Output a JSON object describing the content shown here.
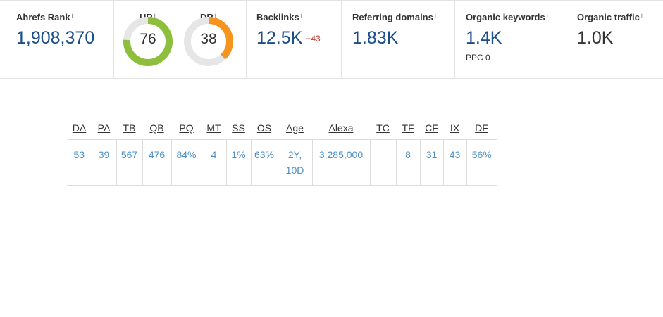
{
  "metrics": {
    "ahrefs_rank": {
      "label": "Ahrefs Rank",
      "value": "1,908,370"
    },
    "ur": {
      "label": "UR",
      "value": "76",
      "fraction": 0.76,
      "color": "#8dbf3c"
    },
    "dr": {
      "label": "DR",
      "value": "38",
      "fraction": 0.38,
      "color": "#f7941d"
    },
    "backlinks": {
      "label": "Backlinks",
      "value": "12.5K",
      "delta": "−43"
    },
    "referring_domains": {
      "label": "Referring domains",
      "value": "1.83K"
    },
    "organic_keywords": {
      "label": "Organic keywords",
      "value": "1.4K",
      "ppc": "PPC 0"
    },
    "organic_traffic": {
      "label": "Organic traffic",
      "value": "1.0K"
    },
    "info_marker": "i",
    "track_color": "#e6e6e6"
  },
  "seo_table": {
    "headers": [
      "DA",
      "PA",
      "TB",
      "QB",
      "PQ",
      "MT",
      "SS",
      "OS",
      "Age",
      "Alexa",
      "TC",
      "TF",
      "CF",
      "IX",
      "DF"
    ],
    "values": [
      "53",
      "39",
      "567",
      "476",
      "84%",
      "4",
      "1%",
      "63%",
      "2Y, 10D",
      "3,285,000",
      "",
      "8",
      "31",
      "43",
      "56%"
    ]
  }
}
